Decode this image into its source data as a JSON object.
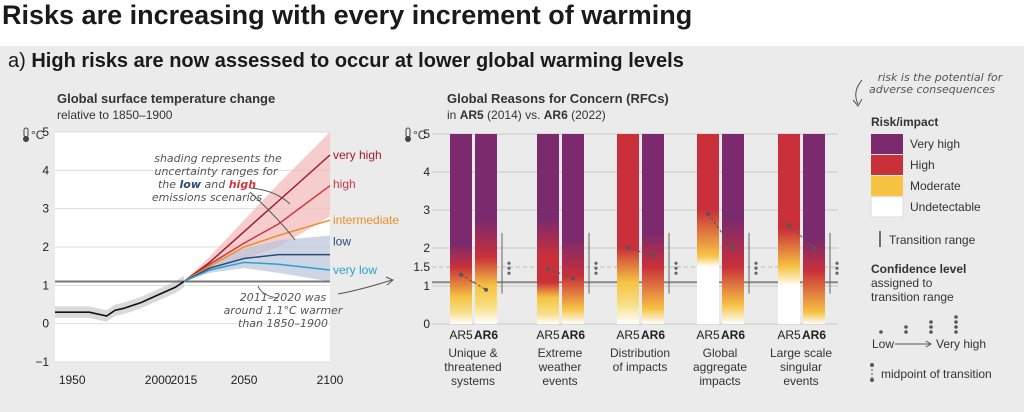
{
  "title": "Risks are increasing with every increment of warming",
  "subtitle": {
    "prefix": "a)",
    "text": "High risks are now assessed to occur at lower global warming levels"
  },
  "left_chart": {
    "title": "Global surface temperature change",
    "subtitle": "relative to 1850–1900",
    "unit": "°C",
    "annotation_shading": [
      "shading represents the",
      "uncertainty ranges for",
      "the",
      "low",
      "and",
      "high",
      "emissions scenarios"
    ],
    "annotation_2011": [
      "2011–2020 was",
      "around 1.1°C warmer",
      "than 1850–1900"
    ]
  },
  "right_chart": {
    "title": "Global Reasons for Concern (RFCs)",
    "subtitle_parts": [
      "in",
      "AR5",
      "(2014) vs.",
      "AR6",
      "(2022)"
    ],
    "unit": "°C",
    "top_note": [
      "risk is the potential for",
      "adverse consequences"
    ]
  },
  "legend": {
    "risk_title": "Risk/impact",
    "risk_items": [
      {
        "label": "Very high",
        "color": "#7b2a6e"
      },
      {
        "label": "High",
        "color": "#c9303a"
      },
      {
        "label": "Moderate",
        "color": "#f6c343"
      },
      {
        "label": "Undetectable",
        "color": "#ffffff"
      }
    ],
    "transition_range": "Transition range",
    "confidence_title": [
      "Confidence level",
      "assigned to",
      "transition range"
    ],
    "confidence_low": "Low",
    "confidence_high": "Very high",
    "midpoint": "midpoint of transition"
  },
  "chart_data": [
    {
      "type": "line",
      "title": "Global surface temperature change",
      "subtitle": "relative to 1850–1900",
      "ylabel": "°C",
      "xlim": [
        1940,
        2100
      ],
      "ylim": [
        -1,
        5
      ],
      "xticks": [
        "1950",
        "2000",
        "2015",
        "2050",
        "2100"
      ],
      "yticks": [
        "−1",
        "0",
        "1",
        "2",
        "3",
        "4",
        "5"
      ],
      "reference_line": 1.1,
      "historical": {
        "x": [
          1940,
          1950,
          1960,
          1970,
          1975,
          1980,
          1990,
          2000,
          2010,
          2015
        ],
        "y": [
          0.3,
          0.3,
          0.3,
          0.2,
          0.35,
          0.4,
          0.55,
          0.75,
          0.95,
          1.1
        ]
      },
      "series": [
        {
          "name": "very high",
          "color": "#a3192e",
          "x": [
            2015,
            2030,
            2050,
            2070,
            2100
          ],
          "y": [
            1.1,
            1.6,
            2.4,
            3.2,
            4.4
          ]
        },
        {
          "name": "high",
          "color": "#d2373f",
          "x": [
            2015,
            2030,
            2050,
            2070,
            2100
          ],
          "y": [
            1.1,
            1.55,
            2.1,
            2.6,
            3.6
          ]
        },
        {
          "name": "intermediate",
          "color": "#e8902a",
          "x": [
            2015,
            2030,
            2050,
            2070,
            2100
          ],
          "y": [
            1.1,
            1.5,
            2.0,
            2.3,
            2.7
          ]
        },
        {
          "name": "low",
          "color": "#2b4a7a",
          "x": [
            2015,
            2030,
            2050,
            2070,
            2100
          ],
          "y": [
            1.1,
            1.45,
            1.7,
            1.8,
            1.8
          ]
        },
        {
          "name": "very low",
          "color": "#2aa2cf",
          "x": [
            2015,
            2030,
            2050,
            2070,
            2100
          ],
          "y": [
            1.1,
            1.4,
            1.6,
            1.55,
            1.4
          ]
        }
      ]
    },
    {
      "type": "bar",
      "title": "Global Reasons for Concern (RFCs)",
      "ylabel": "°C",
      "ylim": [
        0,
        5
      ],
      "yticks": [
        "0",
        "1",
        "1.5",
        "2",
        "3",
        "4",
        "5"
      ],
      "groups": [
        {
          "label": [
            "Unique &",
            "threatened",
            "systems"
          ],
          "bars": [
            "AR5",
            "AR6"
          ]
        },
        {
          "label": [
            "Extreme",
            "weather",
            "events"
          ],
          "bars": [
            "AR5",
            "AR6"
          ]
        },
        {
          "label": [
            "Distribution",
            "of impacts"
          ],
          "bars": [
            "AR5",
            "AR6"
          ]
        },
        {
          "label": [
            "Global",
            "aggregate",
            "impacts"
          ],
          "bars": [
            "AR5",
            "AR6"
          ]
        },
        {
          "label": [
            "Large scale",
            "singular",
            "events"
          ],
          "bars": [
            "AR5",
            "AR6"
          ]
        }
      ]
    }
  ]
}
